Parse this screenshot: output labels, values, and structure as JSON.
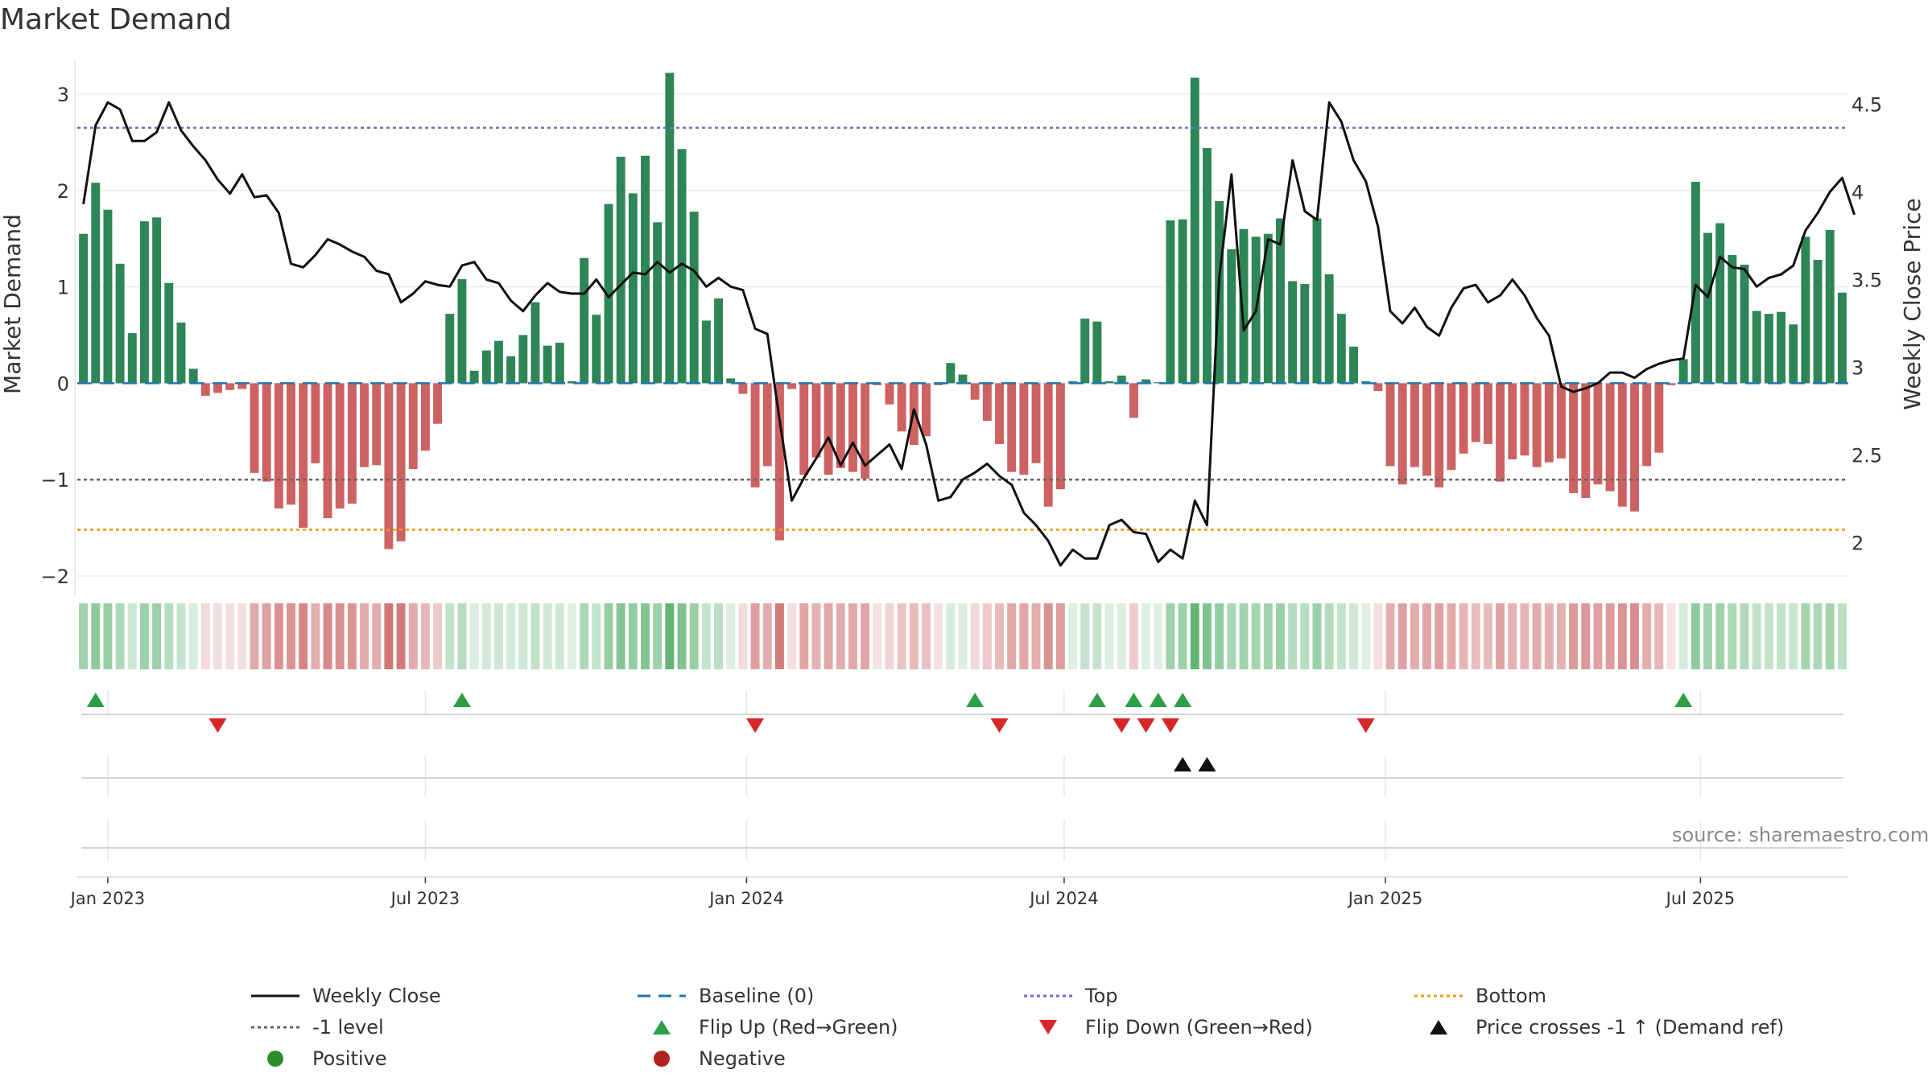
{
  "chart_data": {
    "type": "bar",
    "title": "Market Demand",
    "ylabel": "Market Demand",
    "y2label": "Weekly Close Price",
    "ylim": [
      -2.2,
      3.35
    ],
    "y2lim": [
      1.7,
      4.75
    ],
    "yticks": [
      {
        "v": -2,
        "label": "−2"
      },
      {
        "v": -1,
        "label": "−1"
      },
      {
        "v": 0,
        "label": "0"
      },
      {
        "v": 1,
        "label": "1"
      },
      {
        "v": 2,
        "label": "2"
      },
      {
        "v": 3,
        "label": "3"
      }
    ],
    "y2ticks": [
      {
        "v": 2,
        "label": "2"
      },
      {
        "v": 2.5,
        "label": "2.5"
      },
      {
        "v": 3,
        "label": "3"
      },
      {
        "v": 3.5,
        "label": "3.5"
      },
      {
        "v": 4,
        "label": "4"
      },
      {
        "v": 4.5,
        "label": "4.5"
      }
    ],
    "xticks": [
      {
        "week": 2,
        "label": "Jan 2023"
      },
      {
        "week": 28,
        "label": "Jul 2023"
      },
      {
        "week": 54.3,
        "label": "Jan 2024"
      },
      {
        "week": 80.3,
        "label": "Jul 2024"
      },
      {
        "week": 106.6,
        "label": "Jan 2025"
      },
      {
        "week": 132.4,
        "label": "Jul 2025"
      }
    ],
    "levels": {
      "top": 2.65,
      "minus_one": -1,
      "bottom": -1.52,
      "baseline": 0
    },
    "demand": [
      1.55,
      2.08,
      1.8,
      1.24,
      0.52,
      1.68,
      1.72,
      1.04,
      0.63,
      0.15,
      -0.13,
      -0.1,
      -0.07,
      -0.06,
      -0.93,
      -1.02,
      -1.3,
      -1.26,
      -1.5,
      -0.83,
      -1.4,
      -1.3,
      -1.25,
      -0.87,
      -0.85,
      -1.72,
      -1.64,
      -0.89,
      -0.7,
      -0.42,
      0.72,
      1.08,
      0.13,
      0.34,
      0.44,
      0.28,
      0.5,
      0.84,
      0.39,
      0.42,
      0.02,
      1.3,
      0.71,
      1.86,
      2.35,
      1.97,
      2.36,
      1.67,
      3.22,
      2.43,
      1.78,
      0.65,
      0.88,
      0.05,
      -0.11,
      -1.08,
      -0.86,
      -1.63,
      -0.06,
      -0.95,
      -0.77,
      -0.95,
      -0.88,
      -0.92,
      -0.99,
      -0.02,
      -0.22,
      -0.5,
      -0.64,
      -0.55,
      -0.02,
      0.21,
      0.09,
      -0.17,
      -0.39,
      -0.63,
      -0.92,
      -0.95,
      -0.83,
      -1.28,
      -1.1,
      0.02,
      0.67,
      0.64,
      0.02,
      0.08,
      -0.36,
      0.04,
      0.01,
      1.69,
      1.7,
      3.17,
      2.44,
      1.89,
      1.39,
      1.6,
      1.52,
      1.55,
      1.71,
      1.06,
      1.03,
      1.71,
      1.13,
      0.72,
      0.38,
      0.02,
      -0.08,
      -0.86,
      -1.05,
      -0.87,
      -0.96,
      -1.08,
      -0.9,
      -0.73,
      -0.61,
      -0.63,
      -1.02,
      -0.79,
      -0.75,
      -0.87,
      -0.82,
      -0.78,
      -1.14,
      -1.19,
      -1.05,
      -1.12,
      -1.28,
      -1.33,
      -0.86,
      -0.72,
      -0.02,
      0.25,
      2.09,
      1.56,
      1.66,
      1.33,
      1.23,
      0.75,
      0.72,
      0.74,
      0.61,
      1.52,
      1.28,
      1.59,
      0.94
    ],
    "price": [
      3.93,
      4.38,
      4.51,
      4.47,
      4.29,
      4.29,
      4.34,
      4.51,
      4.35,
      4.26,
      4.18,
      4.07,
      3.99,
      4.1,
      3.97,
      3.98,
      3.88,
      3.59,
      3.57,
      3.64,
      3.73,
      3.7,
      3.66,
      3.63,
      3.55,
      3.53,
      3.37,
      3.42,
      3.49,
      3.47,
      3.46,
      3.58,
      3.6,
      3.5,
      3.48,
      3.38,
      3.32,
      3.41,
      3.48,
      3.43,
      3.42,
      3.42,
      3.5,
      3.4,
      3.47,
      3.54,
      3.53,
      3.6,
      3.54,
      3.59,
      3.55,
      3.46,
      3.51,
      3.46,
      3.44,
      3.22,
      3.19,
      2.7,
      2.24,
      2.37,
      2.48,
      2.6,
      2.44,
      2.57,
      2.44,
      2.5,
      2.56,
      2.42,
      2.76,
      2.56,
      2.24,
      2.26,
      2.36,
      2.4,
      2.45,
      2.38,
      2.33,
      2.17,
      2.1,
      2.01,
      1.87,
      1.96,
      1.91,
      1.91,
      2.1,
      2.13,
      2.06,
      2.05,
      1.89,
      1.96,
      1.91,
      2.24,
      2.1,
      3.51,
      4.1,
      3.21,
      3.32,
      3.73,
      3.7,
      4.18,
      3.89,
      3.84,
      4.51,
      4.4,
      4.18,
      4.06,
      3.8,
      3.32,
      3.25,
      3.34,
      3.23,
      3.18,
      3.34,
      3.45,
      3.47,
      3.37,
      3.41,
      3.5,
      3.41,
      3.28,
      3.18,
      2.89,
      2.86,
      2.88,
      2.91,
      2.97,
      2.97,
      2.94,
      2.99,
      3.02,
      3.04,
      3.05,
      3.47,
      3.4,
      3.63,
      3.57,
      3.56,
      3.46,
      3.51,
      3.53,
      3.58,
      3.78,
      3.88,
      4.0,
      4.08,
      3.87
    ],
    "flip_up_weeks": [
      1,
      31,
      73,
      83,
      86,
      88,
      90,
      131
    ],
    "flip_down_weeks": [
      11,
      55,
      75,
      85,
      87,
      89,
      105
    ],
    "price_cross_weeks": [
      90,
      92
    ],
    "source": "source: sharemaestro.com",
    "legend": [
      {
        "label": "Weekly Close",
        "marker": "line-solid",
        "color": "#111111"
      },
      {
        "label": "Baseline (0)",
        "marker": "line-dash",
        "color": "#1f77b4"
      },
      {
        "label": "Top",
        "marker": "line-dot",
        "color": "#6f6fc6"
      },
      {
        "label": "Bottom",
        "marker": "line-dot",
        "color": "#ee9b16"
      },
      {
        "label": "-1 level",
        "marker": "line-dot",
        "color": "#666666"
      },
      {
        "label": "Flip Up (Red→Green)",
        "marker": "triangle-up",
        "color": "#2ca048"
      },
      {
        "label": "Flip Down (Green→Red)",
        "marker": "triangle-down",
        "color": "#d62728"
      },
      {
        "label": "Price crosses -1 ↑ (Demand ref)",
        "marker": "triangle-up",
        "color": "#111111"
      },
      {
        "label": "Positive",
        "marker": "circle",
        "color": "#2d8b2d"
      },
      {
        "label": "Negative",
        "marker": "circle",
        "color": "#b22222"
      }
    ],
    "colors": {
      "positive_bar": "#2e8555",
      "negative_bar": "#cd6262",
      "price_line": "#111111",
      "baseline": "#1f77b4",
      "top": "#6f6fc6",
      "bottom": "#ee9b16",
      "minus_one": "#666666",
      "heat_positive": "#35a04e",
      "heat_negative": "#c45050"
    }
  }
}
